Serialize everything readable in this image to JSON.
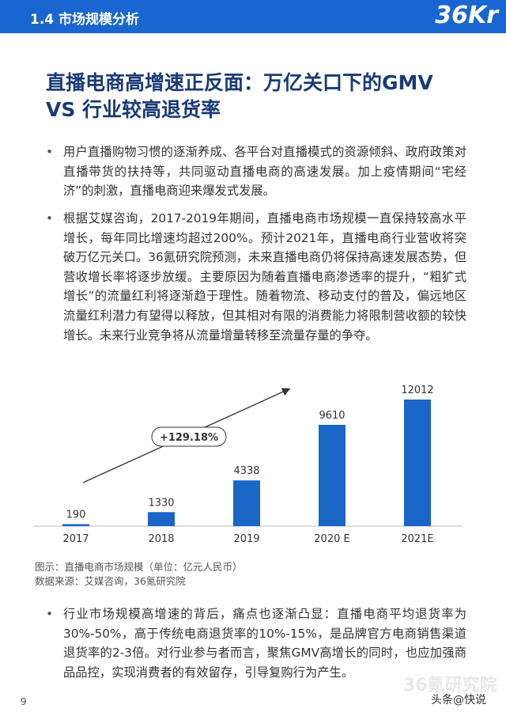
{
  "header": {
    "section": "1.4 市场规模分析",
    "logo": "36Kr"
  },
  "title": [
    "直播电商高增速正反面：万亿关口下的GMV",
    "VS 行业较高退货率"
  ],
  "paragraphs": [
    "用户直播购物习惯的逐渐养成、各平台对直播模式的资源倾斜、政府政策对直播带货的扶持等，共同驱动直播电商的高速发展。加上疫情期间“宅经济”的刺激，直播电商迎来爆发式发展。",
    "根据艾媒咨询，2017-2019年期间，直播电商市场规模一直保持较高水平增长，每年同比增速均超过200%。预计2021年，直播电商行业营收将突破万亿元关口。36氪研究院预测，未来直播电商仍将保持高速发展态势，但营收增长率将逐步放缓。主要原因为随着直播电商渗透率的提升，“粗犷式增长”的流量红利将逐渐趋于理性。随着物流、移动支付的普及，偏远地区流量红利潜力有望得以释放，但其相对有限的消费能力将限制营收额的较快增长。未来行业竞争将从流量增量转移至流量存量的争夺。"
  ],
  "chart": {
    "type": "bar",
    "categories": [
      "2017",
      "2018",
      "2019",
      "2020 E",
      "2021E"
    ],
    "values": [
      190,
      1330,
      4338,
      9610,
      12012
    ],
    "color": "#1a66c6",
    "annotation": "+129.18%"
  },
  "captions": [
    "图示：直播电商市场规模（单位：亿元人民币）",
    "数据来源：艾媒咨询，36氪研究院"
  ],
  "paragraphs2": [
    "行业市场规模高增速的背后，痛点也逐渐凸显：直播电商平均退货率为30%-50%，高于传统电商退货率的10%-15%，是品牌官方电商销售渠道退货率的2-3倍。对行业参与者而言，聚焦GMV高增长的同时，也应加强商品品控，实现消费者的有效留存，引导复购行为产生。"
  ],
  "footer": {
    "page": "9",
    "watermark": "36氪研究院",
    "source_mark": "头条@快说"
  }
}
